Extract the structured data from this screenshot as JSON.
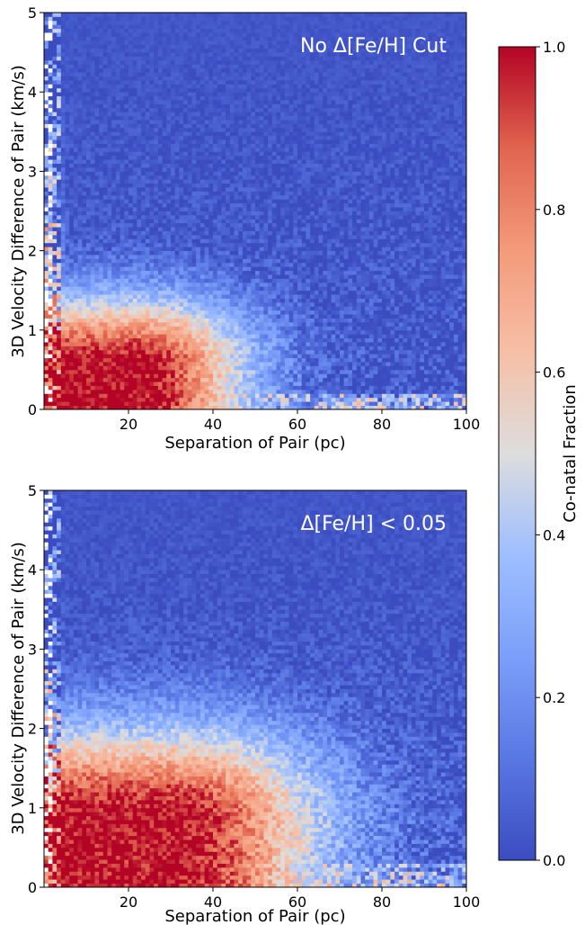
{
  "chart_data": [
    {
      "type": "heatmap",
      "annotation": "No Δ[Fe/H] Cut",
      "xlabel": "Separation of Pair (pc)",
      "ylabel": "3D Velocity Difference of Pair (km/s)",
      "xlim": [
        0,
        100
      ],
      "ylim": [
        0,
        5
      ],
      "xticks": [
        20,
        40,
        60,
        80,
        100
      ],
      "yticks": [
        0,
        1,
        2,
        3,
        4,
        5
      ],
      "value_label": "Co-natal Fraction",
      "value_range": [
        0,
        1
      ],
      "model": {
        "core_x": 22,
        "core_y": 0.55,
        "sx": 26,
        "sy": 0.85,
        "low_v_band": 0.15,
        "noise": 0.12
      }
    },
    {
      "type": "heatmap",
      "annotation": "Δ[Fe/H] < 0.05",
      "xlabel": "Separation of Pair (pc)",
      "ylabel": "3D Velocity Difference of Pair (km/s)",
      "xlim": [
        0,
        100
      ],
      "ylim": [
        0,
        5
      ],
      "xticks": [
        20,
        40,
        60,
        80,
        100
      ],
      "yticks": [
        0,
        1,
        2,
        3,
        4,
        5
      ],
      "value_label": "Co-natal Fraction",
      "value_range": [
        0,
        1
      ],
      "model": {
        "core_x": 30,
        "core_y": 0.85,
        "sx": 36,
        "sy": 1.15,
        "low_v_band": 0.25,
        "noise": 0.14
      }
    }
  ],
  "colorbar": {
    "label": "Co-natal Fraction",
    "ticks": [
      "0.0",
      "0.2",
      "0.4",
      "0.6",
      "0.8",
      "1.0"
    ],
    "colormap": "coolwarm",
    "low_color": "#3b4cc0",
    "mid_color": "#dddddd",
    "high_color": "#b40426"
  }
}
